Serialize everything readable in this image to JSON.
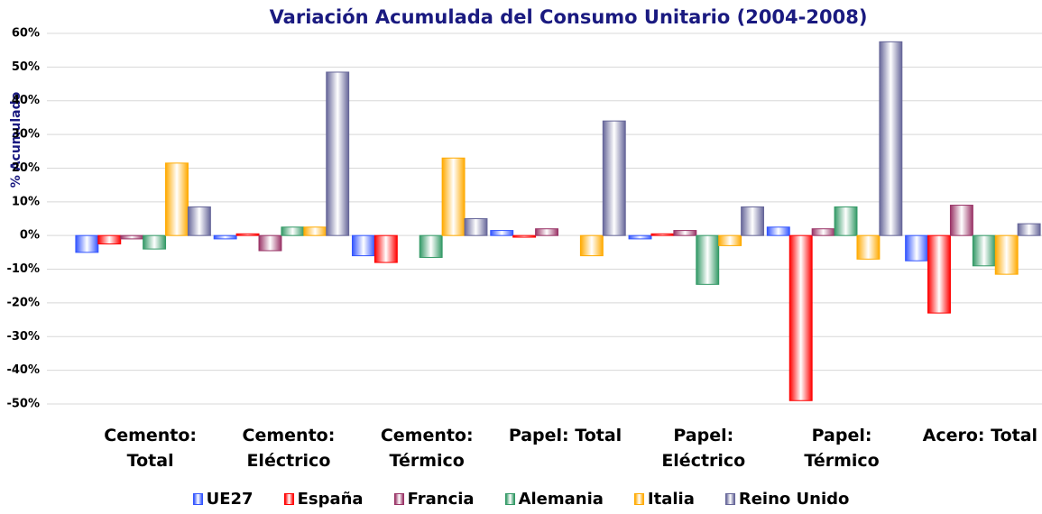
{
  "chart_data": {
    "type": "bar",
    "title": "Variación Acumulada del Consumo Unitario (2004-2008)",
    "y_label": "% Acumulado",
    "categories": [
      "Cemento: Total",
      "Cemento: Eléctrico",
      "Cemento: Térmico",
      "Papel: Total",
      "Papel: Eléctrico",
      "Papel: Térmico",
      "Acero: Total"
    ],
    "series": [
      {
        "name": "UE27",
        "color": "#3355ff",
        "values": [
          -5,
          -1,
          -6,
          1.5,
          -1,
          2.5,
          -7.5
        ]
      },
      {
        "name": "España",
        "color": "#ff0000",
        "values": [
          -2.5,
          0.5,
          -8,
          -0.5,
          0.5,
          -49,
          -23
        ]
      },
      {
        "name": "Francia",
        "color": "#993366",
        "values": [
          -1,
          -4.5,
          0,
          2,
          1.5,
          2,
          9
        ]
      },
      {
        "name": "Alemania",
        "color": "#339966",
        "values": [
          -4,
          2.5,
          -6.5,
          0,
          -14.5,
          8.5,
          -9
        ]
      },
      {
        "name": "Italia",
        "color": "#ffaa00",
        "values": [
          21.5,
          2.5,
          23,
          -6,
          -3,
          -7,
          -11.5
        ]
      },
      {
        "name": "Reino Unido",
        "color": "#666699",
        "values": [
          8.5,
          48.5,
          5,
          34,
          8.5,
          57.5,
          3.5
        ]
      }
    ],
    "ylim": [
      -50,
      60
    ],
    "yticks": [
      {
        "value": -50,
        "label": "-50%"
      },
      {
        "value": -40,
        "label": "-40%"
      },
      {
        "value": -30,
        "label": "-30%"
      },
      {
        "value": -20,
        "label": "-20%"
      },
      {
        "value": -10,
        "label": "-10%"
      },
      {
        "value": 0,
        "label": "0%"
      },
      {
        "value": 10,
        "label": "10%"
      },
      {
        "value": 20,
        "label": "20%"
      },
      {
        "value": 30,
        "label": "30%"
      },
      {
        "value": 40,
        "label": "40%"
      },
      {
        "value": 50,
        "label": "50%"
      },
      {
        "value": 60,
        "label": "60%"
      }
    ],
    "grid": true
  }
}
